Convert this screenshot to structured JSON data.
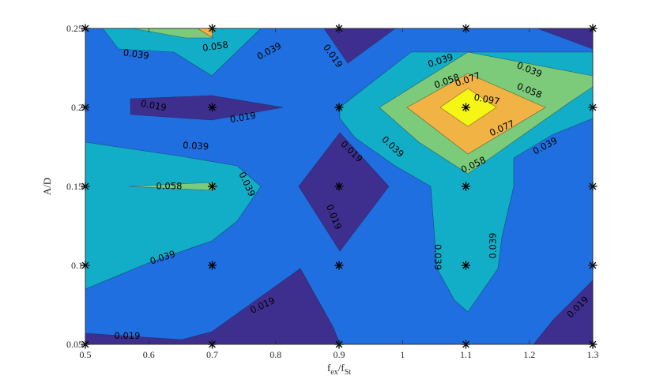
{
  "chart_data": {
    "type": "contour",
    "xlabel_main": "f",
    "xlabel_sub1": "ex",
    "xlabel_mid": "/f",
    "xlabel_sub2": "St",
    "ylabel": "A/D",
    "xlim": [
      0.5,
      1.3
    ],
    "ylim": [
      0.05,
      0.25
    ],
    "xticks": [
      "0.5",
      "0.6",
      "0.7",
      "0.8",
      "0.9",
      "1",
      "1.1",
      "1.2",
      "1.3"
    ],
    "yticks": [
      "0.05",
      "0.1",
      "0.15",
      "0.2",
      "0.25"
    ],
    "contour_levels": [
      0.019,
      0.039,
      0.058,
      0.077,
      0.097
    ],
    "level_colors": [
      "#3e2f8f",
      "#1f6fe0",
      "#12aec8",
      "#7ccb7a",
      "#f1b344",
      "#f6f614"
    ],
    "sample_points": [
      {
        "x": 0.5,
        "y": 0.25
      },
      {
        "x": 0.7,
        "y": 0.25
      },
      {
        "x": 0.9,
        "y": 0.25
      },
      {
        "x": 1.1,
        "y": 0.25
      },
      {
        "x": 1.3,
        "y": 0.25
      },
      {
        "x": 0.5,
        "y": 0.2
      },
      {
        "x": 0.7,
        "y": 0.2
      },
      {
        "x": 0.9,
        "y": 0.2
      },
      {
        "x": 1.1,
        "y": 0.2
      },
      {
        "x": 1.3,
        "y": 0.2
      },
      {
        "x": 0.5,
        "y": 0.15
      },
      {
        "x": 0.7,
        "y": 0.15
      },
      {
        "x": 0.9,
        "y": 0.15
      },
      {
        "x": 1.1,
        "y": 0.15
      },
      {
        "x": 1.3,
        "y": 0.15
      },
      {
        "x": 0.5,
        "y": 0.1
      },
      {
        "x": 0.7,
        "y": 0.1
      },
      {
        "x": 0.9,
        "y": 0.1
      },
      {
        "x": 1.1,
        "y": 0.1
      },
      {
        "x": 1.3,
        "y": 0.1
      },
      {
        "x": 0.5,
        "y": 0.05
      },
      {
        "x": 0.7,
        "y": 0.05
      },
      {
        "x": 0.9,
        "y": 0.05
      },
      {
        "x": 1.1,
        "y": 0.05
      },
      {
        "x": 1.3,
        "y": 0.05
      }
    ],
    "contour_labels": [
      {
        "text": "0.039",
        "x": 0.58,
        "y": 0.2335,
        "angle": 8
      },
      {
        "text": "0.058",
        "x": 0.705,
        "y": 0.2385,
        "angle": -8
      },
      {
        "text": "0.039",
        "x": 0.79,
        "y": 0.2355,
        "angle": -28
      },
      {
        "text": "0.019",
        "x": 0.89,
        "y": 0.2325,
        "angle": 55
      },
      {
        "text": "0.039",
        "x": 1.06,
        "y": 0.2295,
        "angle": -18
      },
      {
        "text": "0.039",
        "x": 1.2,
        "y": 0.2237,
        "angle": 22
      },
      {
        "text": "0.058",
        "x": 1.07,
        "y": 0.2165,
        "angle": -20
      },
      {
        "text": "0.077",
        "x": 1.103,
        "y": 0.2175,
        "angle": -20
      },
      {
        "text": "0.097",
        "x": 1.133,
        "y": 0.2049,
        "angle": 10
      },
      {
        "text": "0.058",
        "x": 1.2,
        "y": 0.2105,
        "angle": 22
      },
      {
        "text": "0.019",
        "x": 0.6075,
        "y": 0.201,
        "angle": 10
      },
      {
        "text": "0.019",
        "x": 0.7485,
        "y": 0.1935,
        "angle": -10
      },
      {
        "text": "0.077",
        "x": 1.157,
        "y": 0.1867,
        "angle": -24
      },
      {
        "text": "0.039",
        "x": 0.674,
        "y": 0.1755,
        "angle": 3
      },
      {
        "text": "0.039",
        "x": 1.225,
        "y": 0.1755,
        "angle": -28
      },
      {
        "text": "0.019",
        "x": 0.9195,
        "y": 0.172,
        "angle": 44
      },
      {
        "text": "0.039",
        "x": 0.9845,
        "y": 0.175,
        "angle": 43
      },
      {
        "text": "0.058",
        "x": 1.112,
        "y": 0.1635,
        "angle": -25
      },
      {
        "text": "0.058",
        "x": 0.632,
        "y": 0.15,
        "angle": 0
      },
      {
        "text": "0.039",
        "x": 0.7545,
        "y": 0.1513,
        "angle": 65
      },
      {
        "text": "0.019",
        "x": 0.8915,
        "y": 0.1306,
        "angle": 68
      },
      {
        "text": "0.039",
        "x": 1.055,
        "y": 0.1052,
        "angle": 90
      },
      {
        "text": "0.039",
        "x": 1.143,
        "y": 0.1125,
        "angle": -90
      },
      {
        "text": "0.039",
        "x": 0.622,
        "y": 0.1048,
        "angle": -18
      },
      {
        "text": "0.019",
        "x": 0.7795,
        "y": 0.0745,
        "angle": -25
      },
      {
        "text": "0.019",
        "x": 1.2765,
        "y": 0.0735,
        "angle": -45
      },
      {
        "text": "0.019",
        "x": 0.566,
        "y": 0.0553,
        "angle": 0
      }
    ]
  }
}
